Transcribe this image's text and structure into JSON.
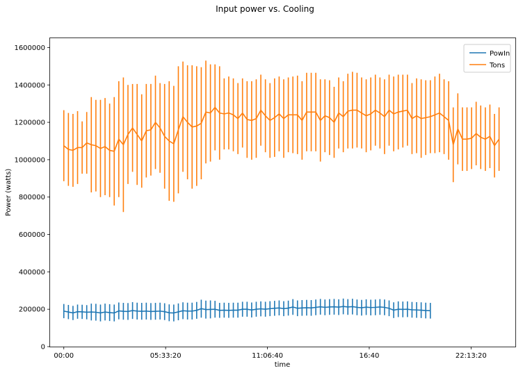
{
  "chart_data": {
    "type": "line",
    "title": "Input power vs. Cooling",
    "xlabel": "time",
    "ylabel": "Power (watts)",
    "x_tick_labels": [
      "00:00",
      "05:33:20",
      "11:06:40",
      "16:40",
      "22:13:20"
    ],
    "x_tick_seconds": [
      0,
      20000,
      40000,
      60000,
      80000
    ],
    "xlim_seconds": [
      -2700,
      88700
    ],
    "ylim": [
      0,
      1650000
    ],
    "y_ticks": [
      0,
      200000,
      400000,
      600000,
      800000,
      1000000,
      1200000,
      1400000,
      1600000
    ],
    "y_tick_labels": [
      "0",
      "200000",
      "400000",
      "600000",
      "800000",
      "1000000",
      "1200000",
      "1400000",
      "1600000"
    ],
    "x_start_seconds": 0,
    "x_step_seconds": 900,
    "legend_position": "top-right",
    "grid": false,
    "series": [
      {
        "name": "PowIn",
        "color": "#1f77b4",
        "values": [
          190000,
          185000,
          180000,
          187000,
          186000,
          184000,
          185000,
          184000,
          180000,
          185000,
          182000,
          180000,
          191000,
          189000,
          188000,
          193000,
          190000,
          189000,
          190000,
          188000,
          189000,
          190000,
          187000,
          181000,
          180000,
          186000,
          192000,
          190000,
          190000,
          194000,
          203000,
          198000,
          199000,
          200000,
          194000,
          195000,
          194000,
          195000,
          195000,
          200000,
          200000,
          196000,
          200000,
          202000,
          200000,
          203000,
          205000,
          207000,
          203000,
          206000,
          212000,
          205000,
          207000,
          208000,
          207000,
          210000,
          213000,
          210000,
          212000,
          213000,
          211000,
          215000,
          212000,
          214000,
          210000,
          208000,
          211000,
          209000,
          210000,
          212000,
          210000,
          205000,
          195000,
          200000,
          199000,
          200000,
          197000,
          196000,
          195000,
          193000,
          192000
        ],
        "errors": [
          38000,
          38000,
          38000,
          38000,
          38000,
          38000,
          45000,
          45000,
          45000,
          45000,
          45000,
          45000,
          45000,
          45000,
          45000,
          45000,
          45000,
          45000,
          45000,
          45000,
          45000,
          45000,
          45000,
          45000,
          45000,
          45000,
          45000,
          45000,
          45000,
          45000,
          48000,
          48000,
          48000,
          45000,
          40000,
          40000,
          40000,
          40000,
          40000,
          40000,
          40000,
          40000,
          40000,
          40000,
          40000,
          40000,
          40000,
          40000,
          40000,
          40000,
          42000,
          42000,
          42000,
          42000,
          42000,
          42000,
          42000,
          42000,
          42000,
          42000,
          42000,
          42000,
          42000,
          42000,
          42000,
          42000,
          42000,
          42000,
          42000,
          42000,
          42000,
          42000,
          42000,
          42000,
          42000,
          42000,
          42000,
          42000,
          42000,
          42000,
          42000
        ]
      },
      {
        "name": "Tons",
        "color": "#ff7f0e",
        "values": [
          1075000,
          1055000,
          1050000,
          1065000,
          1065000,
          1090000,
          1080000,
          1075000,
          1060000,
          1070000,
          1050000,
          1045000,
          1110000,
          1080000,
          1135000,
          1170000,
          1135000,
          1100000,
          1155000,
          1160000,
          1200000,
          1170000,
          1125000,
          1100000,
          1085000,
          1160000,
          1230000,
          1200000,
          1175000,
          1180000,
          1195000,
          1255000,
          1250000,
          1280000,
          1250000,
          1245000,
          1250000,
          1240000,
          1220000,
          1250000,
          1215000,
          1210000,
          1220000,
          1265000,
          1235000,
          1210000,
          1225000,
          1245000,
          1220000,
          1240000,
          1240000,
          1240000,
          1210000,
          1255000,
          1255000,
          1255000,
          1210000,
          1235000,
          1225000,
          1200000,
          1250000,
          1230000,
          1260000,
          1265000,
          1265000,
          1250000,
          1235000,
          1245000,
          1265000,
          1250000,
          1230000,
          1265000,
          1245000,
          1255000,
          1260000,
          1265000,
          1220000,
          1235000,
          1220000,
          1225000,
          1230000,
          1240000,
          1250000,
          1230000,
          1210000,
          1080000,
          1165000,
          1110000,
          1110000,
          1115000,
          1140000,
          1120000,
          1110000,
          1125000,
          1075000,
          1110000
        ],
        "errors": [
          190000,
          195000,
          195000,
          195000,
          140000,
          165000,
          255000,
          245000,
          260000,
          260000,
          250000,
          290000,
          310000,
          360000,
          265000,
          235000,
          270000,
          250000,
          250000,
          245000,
          250000,
          240000,
          280000,
          320000,
          310000,
          340000,
          295000,
          305000,
          330000,
          320000,
          300000,
          275000,
          260000,
          230000,
          250000,
          190000,
          195000,
          195000,
          190000,
          185000,
          205000,
          210000,
          210000,
          190000,
          195000,
          200000,
          210000,
          200000,
          210000,
          200000,
          205000,
          210000,
          210000,
          210000,
          210000,
          210000,
          220000,
          195000,
          200000,
          190000,
          190000,
          190000,
          200000,
          205000,
          200000,
          190000,
          195000,
          195000,
          190000,
          190000,
          200000,
          190000,
          200000,
          200000,
          195000,
          190000,
          190000,
          200000,
          210000,
          200000,
          195000,
          205000,
          210000,
          200000,
          210000,
          200000,
          190000,
          170000,
          170000,
          165000,
          170000,
          170000,
          170000,
          170000,
          170000,
          170000
        ]
      }
    ]
  }
}
